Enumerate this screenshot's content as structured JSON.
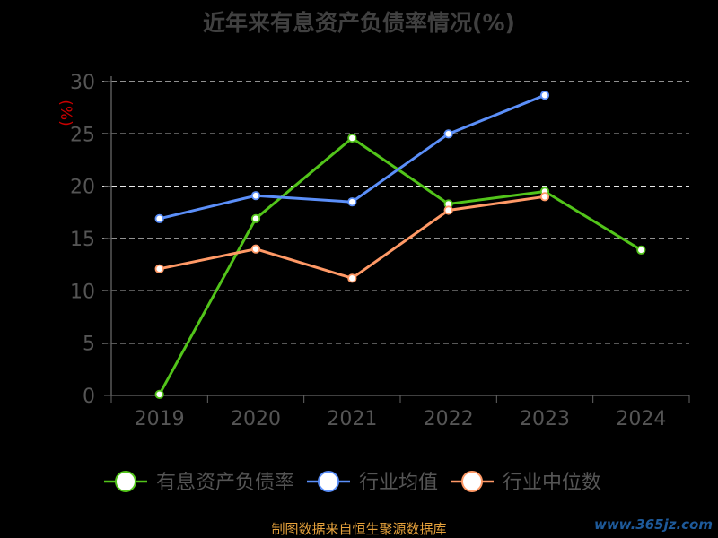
{
  "chart_data": {
    "type": "line",
    "title": "近年来有息资产负债率情况(%)",
    "ylabel": "(%)",
    "categories": [
      "2019",
      "2020",
      "2021",
      "2022",
      "2023",
      "2024"
    ],
    "ylim": [
      0,
      30
    ],
    "yticks": [
      0,
      5,
      10,
      15,
      20,
      25,
      30
    ],
    "grid": true,
    "legend_position": "bottom",
    "series": [
      {
        "name": "有息资产负债率",
        "color": "#52c41a",
        "values": [
          0.1,
          16.9,
          24.6,
          18.3,
          19.5,
          13.9
        ]
      },
      {
        "name": "行业均值",
        "color": "#5b8ff9",
        "values": [
          16.9,
          19.1,
          18.5,
          25.0,
          28.7,
          null
        ]
      },
      {
        "name": "行业中位数",
        "color": "#ff9966",
        "values": [
          12.1,
          14.0,
          11.2,
          17.7,
          19.0,
          null
        ]
      }
    ]
  },
  "footer": "制图数据来自恒生聚源数据库",
  "watermark": "www.365jz.com"
}
